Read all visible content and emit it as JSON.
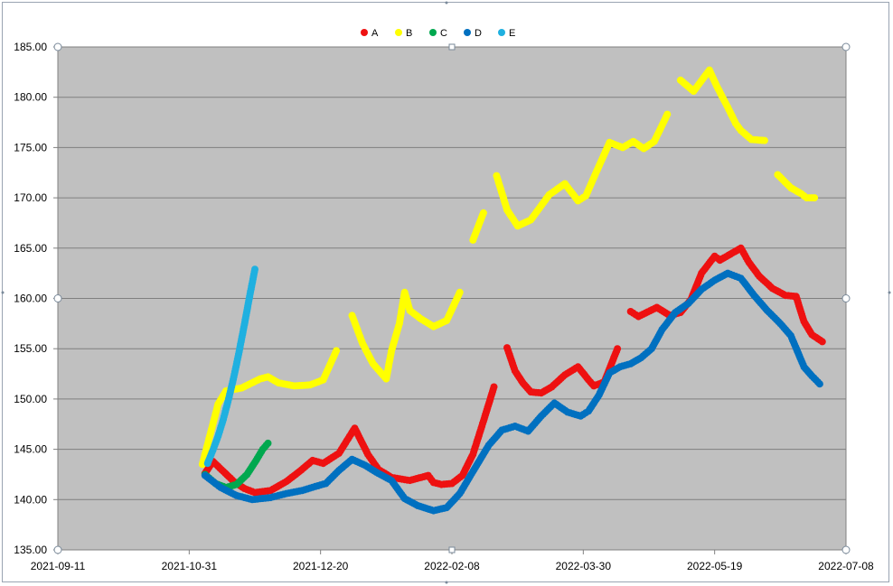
{
  "chart_data": {
    "type": "scatter",
    "title": "",
    "xlabel": "",
    "ylabel": "",
    "plot_background": "#c0c0c0",
    "grid": true,
    "legend_position": "top",
    "xlim": [
      "2021-09-11",
      "2022-07-08"
    ],
    "ylim": [
      135,
      185
    ],
    "x_ticks": [
      "2021-09-11",
      "2021-10-31",
      "2021-12-20",
      "2022-02-08",
      "2022-03-30",
      "2022-05-19",
      "2022-07-08"
    ],
    "y_ticks": [
      "135.00",
      "140.00",
      "145.00",
      "150.00",
      "155.00",
      "160.00",
      "165.00",
      "170.00",
      "175.00",
      "180.00",
      "185.00"
    ],
    "series": [
      {
        "name": "A",
        "color": "#ee1111",
        "x": [
          "2021-11-06",
          "2021-11-09",
          "2021-11-13",
          "2021-11-17",
          "2021-11-21",
          "2021-11-25",
          "2021-12-01",
          "2021-12-07",
          "2021-12-12",
          "2021-12-17",
          "2021-12-21",
          "2021-12-27",
          "2022-01-02",
          "2022-01-07",
          "2022-01-11",
          "2022-01-16",
          "2022-01-23",
          "2022-01-30",
          "2022-02-01",
          "2022-02-04",
          "2022-02-08",
          "2022-02-12",
          "2022-02-16",
          "2022-02-20",
          "2022-02-24",
          "2022-03-01",
          "2022-03-04",
          "2022-03-07",
          "2022-03-10",
          "2022-03-14",
          "2022-03-18",
          "2022-03-23",
          "2022-03-28",
          "2022-04-01",
          "2022-04-03",
          "2022-04-07",
          "2022-04-12",
          "2022-04-17",
          "2022-04-20",
          "2022-04-27",
          "2022-05-02",
          "2022-05-06",
          "2022-05-10",
          "2022-05-14",
          "2022-05-19",
          "2022-05-21",
          "2022-05-25",
          "2022-05-29",
          "2022-06-01",
          "2022-06-05",
          "2022-06-10",
          "2022-06-15",
          "2022-06-19",
          "2022-06-22",
          "2022-06-25",
          "2022-06-29"
        ],
        "y": [
          142.6,
          143.8,
          142.8,
          141.8,
          141.1,
          140.7,
          140.9,
          141.8,
          142.8,
          143.9,
          143.6,
          144.6,
          147.1,
          144.5,
          143.0,
          142.2,
          141.9,
          142.4,
          141.7,
          141.5,
          141.6,
          142.4,
          144.5,
          147.8,
          151.2,
          155.1,
          152.8,
          151.6,
          150.7,
          150.6,
          151.2,
          152.4,
          153.2,
          151.9,
          151.3,
          151.7,
          155.0,
          158.7,
          158.2,
          159.1,
          158.3,
          158.6,
          159.9,
          162.5,
          164.2,
          163.8,
          164.4,
          165.0,
          163.6,
          162.2,
          161.0,
          160.3,
          160.2,
          157.7,
          156.4,
          155.7
        ]
      },
      {
        "name": "B",
        "color": "#ffff00",
        "x": [
          "2021-11-05",
          "2021-11-08",
          "2021-11-11",
          "2021-11-14",
          "2021-11-20",
          "2021-11-27",
          "2021-11-30",
          "2021-12-04",
          "2021-12-10",
          "2021-12-16",
          "2021-12-21",
          "2021-12-26",
          "2022-01-01",
          "2022-01-05",
          "2022-01-09",
          "2022-01-14",
          "2022-01-16",
          "2022-01-19",
          "2022-01-21",
          "2022-01-23",
          "2022-01-27",
          "2022-02-01",
          "2022-02-06",
          "2022-02-11",
          "2022-02-16",
          "2022-02-20",
          "2022-02-25",
          "2022-03-01",
          "2022-03-05",
          "2022-03-10",
          "2022-03-17",
          "2022-03-23",
          "2022-03-28",
          "2022-03-31",
          "2022-04-04",
          "2022-04-09",
          "2022-04-14",
          "2022-04-18",
          "2022-04-22",
          "2022-04-26",
          "2022-05-01",
          "2022-05-06",
          "2022-05-11",
          "2022-05-17",
          "2022-05-20",
          "2022-05-24",
          "2022-05-27",
          "2022-05-29",
          "2022-06-02",
          "2022-06-07",
          "2022-06-12",
          "2022-06-17",
          "2022-06-21",
          "2022-06-23",
          "2022-06-26"
        ],
        "y": [
          143.5,
          146.5,
          149.5,
          150.8,
          151.1,
          152.0,
          152.2,
          151.6,
          151.3,
          151.4,
          151.9,
          154.8,
          158.3,
          155.5,
          153.5,
          152.0,
          154.8,
          157.5,
          160.6,
          158.8,
          158.0,
          157.2,
          157.8,
          160.6,
          165.8,
          168.5,
          172.2,
          168.8,
          167.2,
          167.8,
          170.3,
          171.4,
          169.7,
          170.2,
          172.6,
          175.5,
          175.0,
          175.6,
          174.9,
          175.6,
          178.3,
          181.7,
          180.6,
          182.7,
          181.0,
          179.0,
          177.4,
          176.7,
          175.8,
          175.7,
          172.3,
          171.0,
          170.4,
          170.0,
          170.0
        ]
      },
      {
        "name": "C",
        "color": "#00a84f",
        "x": [
          "2021-11-06",
          "2021-11-10",
          "2021-11-14",
          "2021-11-18",
          "2021-11-22",
          "2021-11-25",
          "2021-11-28",
          "2021-11-30"
        ],
        "y": [
          142.5,
          141.6,
          141.2,
          141.5,
          142.5,
          143.7,
          145.0,
          145.6
        ]
      },
      {
        "name": "D",
        "color": "#0070c0",
        "x": [
          "2021-11-06",
          "2021-11-12",
          "2021-11-18",
          "2021-11-24",
          "2021-12-01",
          "2021-12-07",
          "2021-12-13",
          "2021-12-18",
          "2021-12-22",
          "2021-12-27",
          "2022-01-01",
          "2022-01-06",
          "2022-01-11",
          "2022-01-16",
          "2022-01-21",
          "2022-01-26",
          "2022-02-01",
          "2022-02-06",
          "2022-02-11",
          "2022-02-16",
          "2022-02-22",
          "2022-02-27",
          "2022-03-04",
          "2022-03-09",
          "2022-03-14",
          "2022-03-19",
          "2022-03-24",
          "2022-03-29",
          "2022-04-01",
          "2022-04-05",
          "2022-04-09",
          "2022-04-13",
          "2022-04-17",
          "2022-04-21",
          "2022-04-25",
          "2022-04-29",
          "2022-05-04",
          "2022-05-09",
          "2022-05-14",
          "2022-05-19",
          "2022-05-24",
          "2022-05-29",
          "2022-06-03",
          "2022-06-08",
          "2022-06-13",
          "2022-06-17",
          "2022-06-22",
          "2022-06-25",
          "2022-06-28"
        ],
        "y": [
          142.4,
          141.2,
          140.4,
          140.0,
          140.2,
          140.6,
          140.9,
          141.3,
          141.6,
          142.9,
          144.0,
          143.4,
          142.6,
          141.9,
          140.1,
          139.4,
          138.9,
          139.2,
          140.6,
          142.8,
          145.4,
          146.9,
          147.3,
          146.8,
          148.3,
          149.6,
          148.7,
          148.3,
          148.8,
          150.4,
          152.6,
          153.2,
          153.5,
          154.1,
          155.0,
          156.9,
          158.6,
          159.5,
          160.9,
          161.8,
          162.5,
          162.0,
          160.3,
          158.8,
          157.5,
          156.3,
          153.2,
          152.3,
          151.5
        ]
      },
      {
        "name": "E",
        "color": "#1fb0e0",
        "x": [
          "2021-11-07",
          "2021-11-09",
          "2021-11-11",
          "2021-11-13",
          "2021-11-15",
          "2021-11-17",
          "2021-11-19",
          "2021-11-21",
          "2021-11-23",
          "2021-11-25"
        ],
        "y": [
          143.6,
          144.9,
          146.3,
          148.0,
          150.0,
          152.2,
          154.7,
          157.4,
          160.2,
          162.9
        ]
      }
    ]
  }
}
